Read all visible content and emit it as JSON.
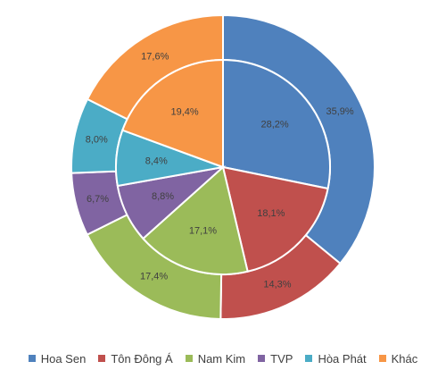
{
  "chart_data": {
    "type": "pie",
    "subtype": "doughnut-with-inner-pie",
    "categories": [
      "Hoa Sen",
      "Tôn Đông Á",
      "Nam Kim",
      "TVP",
      "Hòa Phát",
      "Khác"
    ],
    "colors": [
      "#4F81BD",
      "#C0504D",
      "#9BBB59",
      "#8064A2",
      "#4BACC6",
      "#F79646"
    ],
    "series": [
      {
        "ring": "inner",
        "values": [
          28.2,
          18.1,
          17.1,
          8.8,
          8.4,
          19.4
        ],
        "labels": [
          "28,2%",
          "18,1%",
          "17,1%",
          "8,8%",
          "8,4%",
          "19,4%"
        ]
      },
      {
        "ring": "outer",
        "values": [
          35.9,
          14.3,
          17.4,
          6.7,
          8.0,
          17.6
        ],
        "labels": [
          "35,9%",
          "14,3%",
          "17,4%",
          "6,7%",
          "8,0%",
          "17,6%"
        ]
      }
    ],
    "legend_position": "bottom"
  }
}
